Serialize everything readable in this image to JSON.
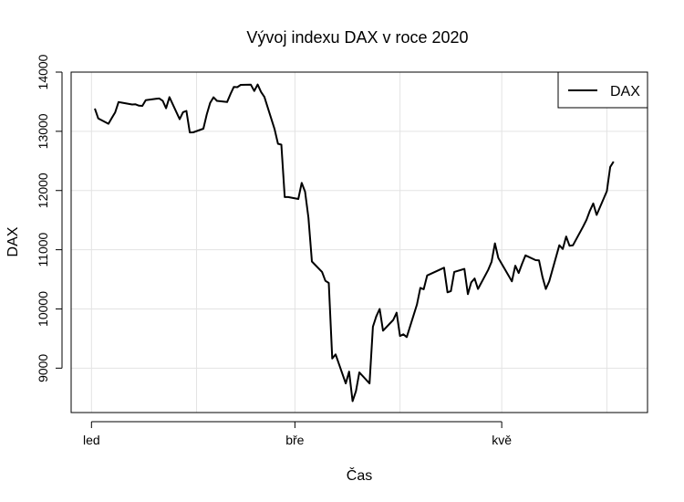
{
  "chart_data": {
    "type": "line",
    "title": "Vývoj indexu DAX v roce 2020",
    "xlabel": "Čas",
    "ylabel": "DAX",
    "x_tick_labels": [
      "led",
      "bře",
      "kvě"
    ],
    "x_ticks_day": [
      0,
      60,
      121
    ],
    "y_ticks": [
      9000,
      10000,
      11000,
      12000,
      13000,
      14000
    ],
    "ylim": [
      8250,
      14000
    ],
    "xlim_day": [
      -6,
      164
    ],
    "grid": true,
    "legend": {
      "position": "top-right",
      "entries": [
        "DAX"
      ]
    },
    "series": [
      {
        "name": "DAX",
        "color": "#000000",
        "x": [
          "2020-01-02",
          "2020-01-03",
          "2020-01-06",
          "2020-01-07",
          "2020-01-08",
          "2020-01-09",
          "2020-01-10",
          "2020-01-13",
          "2020-01-14",
          "2020-01-15",
          "2020-01-16",
          "2020-01-17",
          "2020-01-20",
          "2020-01-21",
          "2020-01-22",
          "2020-01-23",
          "2020-01-24",
          "2020-01-27",
          "2020-01-28",
          "2020-01-29",
          "2020-01-30",
          "2020-01-31",
          "2020-02-03",
          "2020-02-04",
          "2020-02-05",
          "2020-02-06",
          "2020-02-07",
          "2020-02-10",
          "2020-02-11",
          "2020-02-12",
          "2020-02-13",
          "2020-02-14",
          "2020-02-17",
          "2020-02-18",
          "2020-02-19",
          "2020-02-20",
          "2020-02-21",
          "2020-02-24",
          "2020-02-25",
          "2020-02-26",
          "2020-02-27",
          "2020-02-28",
          "2020-03-02",
          "2020-03-03",
          "2020-03-04",
          "2020-03-05",
          "2020-03-06",
          "2020-03-09",
          "2020-03-10",
          "2020-03-11",
          "2020-03-12",
          "2020-03-13",
          "2020-03-16",
          "2020-03-17",
          "2020-03-18",
          "2020-03-19",
          "2020-03-20",
          "2020-03-23",
          "2020-03-24",
          "2020-03-25",
          "2020-03-26",
          "2020-03-27",
          "2020-03-30",
          "2020-03-31",
          "2020-04-01",
          "2020-04-02",
          "2020-04-03",
          "2020-04-06",
          "2020-04-07",
          "2020-04-08",
          "2020-04-09",
          "2020-04-14",
          "2020-04-15",
          "2020-04-16",
          "2020-04-17",
          "2020-04-20",
          "2020-04-21",
          "2020-04-22",
          "2020-04-23",
          "2020-04-24",
          "2020-04-27",
          "2020-04-28",
          "2020-04-29",
          "2020-04-30",
          "2020-05-04",
          "2020-05-05",
          "2020-05-06",
          "2020-05-07",
          "2020-05-08",
          "2020-05-11",
          "2020-05-12",
          "2020-05-13",
          "2020-05-14",
          "2020-05-15",
          "2020-05-18",
          "2020-05-19",
          "2020-05-20",
          "2020-05-21",
          "2020-05-22",
          "2020-05-25",
          "2020-05-26",
          "2020-05-27",
          "2020-05-28",
          "2020-05-29",
          "2020-06-01",
          "2020-06-02",
          "2020-06-03"
        ],
        "y": [
          13385,
          13219,
          13127,
          13226,
          13320,
          13495,
          13483,
          13452,
          13456,
          13432,
          13430,
          13526,
          13548,
          13555,
          13516,
          13389,
          13577,
          13205,
          13324,
          13345,
          12981,
          12982,
          13045,
          13285,
          13479,
          13575,
          13514,
          13494,
          13628,
          13750,
          13745,
          13784,
          13789,
          13681,
          13790,
          13665,
          13580,
          13035,
          12790,
          12775,
          11890,
          11890,
          11857,
          12128,
          11981,
          11541,
          10802,
          10625,
          10475,
          10439,
          9162,
          9232,
          8742,
          8940,
          8442,
          8611,
          8929,
          8742,
          9701,
          9875,
          10000,
          9633,
          9815,
          9936,
          9544,
          9571,
          9525,
          10075,
          10356,
          10333,
          10565,
          10697,
          10280,
          10302,
          10626,
          10676,
          10250,
          10448,
          10514,
          10337,
          10659,
          10795,
          11108,
          10862,
          10467,
          10730,
          10607,
          10761,
          10905,
          10825,
          10821,
          10542,
          10337,
          10465,
          11075,
          11013,
          11223,
          11067,
          11074,
          11391,
          11505,
          11658,
          11781,
          11587,
          11989,
          12398,
          12487
        ]
      }
    ]
  }
}
